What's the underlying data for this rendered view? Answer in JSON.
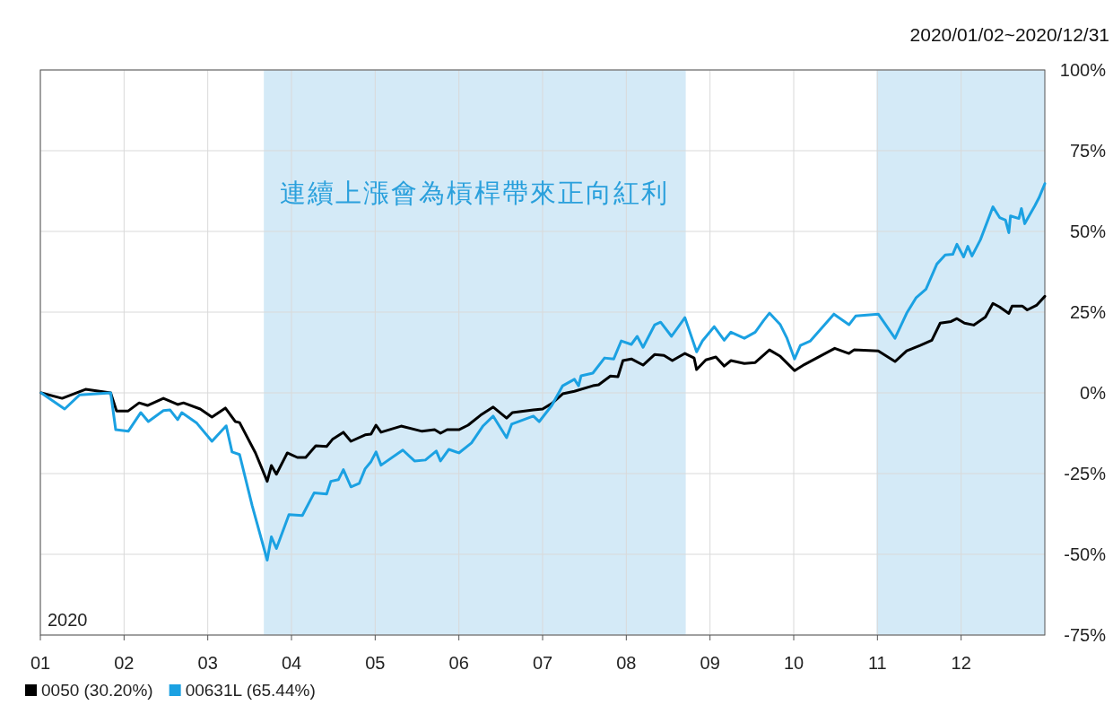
{
  "chart_data": {
    "type": "line",
    "annotations": [
      "2020/01/02~2020/12/31",
      "2020",
      "連續上漲會為槓桿帶來正向紅利"
    ],
    "xlim": [
      1,
      13
    ],
    "xticks": [
      {
        "value": 1,
        "label": "01"
      },
      {
        "value": 2,
        "label": "02"
      },
      {
        "value": 3,
        "label": "03"
      },
      {
        "value": 4,
        "label": "04"
      },
      {
        "value": 5,
        "label": "05"
      },
      {
        "value": 6,
        "label": "06"
      },
      {
        "value": 7,
        "label": "07"
      },
      {
        "value": 8,
        "label": "08"
      },
      {
        "value": 9,
        "label": "09"
      },
      {
        "value": 10,
        "label": "10"
      },
      {
        "value": 11,
        "label": "11"
      },
      {
        "value": 12,
        "label": "12"
      }
    ],
    "ylim": [
      -75,
      100
    ],
    "yticks": [
      {
        "value": 100,
        "label": "100%"
      },
      {
        "value": 75,
        "label": "75%"
      },
      {
        "value": 50,
        "label": "50%"
      },
      {
        "value": 25,
        "label": "25%"
      },
      {
        "value": 0,
        "label": "0%"
      },
      {
        "value": -25,
        "label": "-25%"
      },
      {
        "value": -50,
        "label": "-50%"
      },
      {
        "value": -75,
        "label": "-75%"
      }
    ],
    "grid": true,
    "legend": "bottom left",
    "marker": "none",
    "line_style": "solid",
    "bands": [
      {
        "axis": "x",
        "from": 3.67,
        "to": 8.71,
        "color": "#d4eaf7"
      },
      {
        "axis": "x",
        "from": 10.99,
        "to": 13.0,
        "color": "#d4eaf7"
      }
    ],
    "series": [
      {
        "name": "0050 (30.20%)",
        "color": "#000000",
        "x": [
          1.01,
          1.26,
          1.54,
          1.84,
          1.91,
          2.05,
          2.18,
          2.28,
          2.47,
          2.64,
          2.71,
          2.91,
          3.05,
          3.21,
          3.33,
          3.38,
          3.57,
          3.71,
          3.76,
          3.82,
          3.95,
          4.07,
          4.17,
          4.29,
          4.42,
          4.49,
          4.62,
          4.71,
          4.88,
          4.95,
          5.01,
          5.07,
          5.31,
          5.56,
          5.71,
          5.78,
          5.86,
          6.0,
          6.11,
          6.26,
          6.41,
          6.57,
          6.64,
          6.89,
          7.0,
          7.11,
          7.24,
          7.38,
          7.6,
          7.67,
          7.81,
          7.9,
          7.96,
          8.06,
          8.2,
          8.34,
          8.45,
          8.55,
          8.7,
          8.81,
          8.84,
          8.95,
          9.07,
          9.17,
          9.25,
          9.41,
          9.54,
          9.71,
          9.84,
          10.01,
          10.13,
          10.31,
          10.49,
          10.66,
          10.72,
          11.01,
          11.21,
          11.35,
          11.51,
          11.65,
          11.75,
          11.88,
          11.95,
          12.04,
          12.15,
          12.29,
          12.38,
          12.46,
          12.57,
          12.61,
          12.73,
          12.79,
          12.9,
          13.0
        ],
        "values": [
          0,
          -1.7,
          1.1,
          0,
          -5.6,
          -5.6,
          -3.1,
          -3.9,
          -1.7,
          -3.6,
          -3.1,
          -5.0,
          -7.5,
          -4.7,
          -8.9,
          -9.2,
          -18.6,
          -27.4,
          -22.5,
          -25.2,
          -18.6,
          -20.0,
          -20.0,
          -16.4,
          -16.6,
          -14.4,
          -12.2,
          -15.0,
          -13.0,
          -12.8,
          -10.0,
          -12.2,
          -10.3,
          -11.9,
          -11.4,
          -12.5,
          -11.4,
          -11.4,
          -10.0,
          -6.9,
          -4.4,
          -7.8,
          -6.1,
          -5.3,
          -5.0,
          -3.3,
          -0.3,
          0.5,
          2.2,
          2.5,
          5.2,
          5.0,
          10.0,
          10.5,
          8.6,
          11.9,
          11.6,
          10.0,
          12.2,
          10.8,
          7.2,
          10.2,
          11.1,
          8.3,
          10.0,
          9.1,
          9.4,
          13.3,
          11.3,
          6.9,
          8.8,
          11.3,
          13.8,
          12.2,
          13.3,
          13.0,
          9.7,
          13.0,
          14.7,
          16.3,
          21.6,
          22.1,
          23.0,
          21.6,
          21.0,
          23.5,
          27.7,
          26.6,
          24.6,
          26.9,
          26.9,
          25.7,
          27.1,
          29.9
        ]
      },
      {
        "name": "00631L (65.44%)",
        "color": "#1ba1e2",
        "x": [
          1.01,
          1.29,
          1.47,
          1.84,
          1.9,
          2.05,
          2.2,
          2.29,
          2.47,
          2.55,
          2.64,
          2.69,
          2.87,
          3.05,
          3.22,
          3.29,
          3.38,
          3.53,
          3.71,
          3.76,
          3.82,
          3.97,
          4.13,
          4.27,
          4.42,
          4.47,
          4.56,
          4.62,
          4.71,
          4.81,
          4.88,
          4.95,
          5.01,
          5.07,
          5.33,
          5.47,
          5.6,
          5.73,
          5.78,
          5.88,
          6.0,
          6.15,
          6.29,
          6.41,
          6.57,
          6.63,
          6.89,
          6.96,
          7.11,
          7.24,
          7.38,
          7.43,
          7.46,
          7.6,
          7.74,
          7.85,
          7.94,
          8.06,
          8.13,
          8.2,
          8.34,
          8.41,
          8.54,
          8.7,
          8.84,
          8.91,
          9.05,
          9.17,
          9.25,
          9.41,
          9.54,
          9.64,
          9.71,
          9.84,
          9.92,
          10.01,
          10.08,
          10.2,
          10.48,
          10.66,
          10.74,
          11.01,
          11.21,
          11.35,
          11.46,
          11.58,
          11.71,
          11.81,
          11.9,
          11.95,
          12.03,
          12.08,
          12.13,
          12.23,
          12.38,
          12.46,
          12.53,
          12.57,
          12.59,
          12.69,
          12.72,
          12.76,
          12.88,
          12.93,
          13.0
        ],
        "values": [
          0,
          -5.0,
          -0.6,
          0,
          -11.4,
          -11.9,
          -6.1,
          -8.9,
          -5.5,
          -5.3,
          -8.3,
          -6.1,
          -9.4,
          -15.0,
          -10.2,
          -18.3,
          -19.1,
          -34.9,
          -51.8,
          -44.6,
          -48.2,
          -37.7,
          -38.0,
          -31.0,
          -31.3,
          -27.4,
          -26.9,
          -23.8,
          -29.1,
          -28.0,
          -23.5,
          -21.3,
          -18.3,
          -22.4,
          -17.7,
          -21.1,
          -20.8,
          -18.0,
          -21.1,
          -17.5,
          -18.6,
          -15.5,
          -10.2,
          -7.2,
          -13.9,
          -9.7,
          -7.2,
          -8.9,
          -3.9,
          2.2,
          4.2,
          2.2,
          5.3,
          6.1,
          10.8,
          10.5,
          16.1,
          15.0,
          17.5,
          14.1,
          21.1,
          21.9,
          17.5,
          23.3,
          12.7,
          16.1,
          20.5,
          16.3,
          18.8,
          16.9,
          18.8,
          22.4,
          24.7,
          21.1,
          16.9,
          10.5,
          14.7,
          16.1,
          24.4,
          21.1,
          23.8,
          24.4,
          16.9,
          24.7,
          29.4,
          32.1,
          39.9,
          42.7,
          42.9,
          46.0,
          42.1,
          45.4,
          42.4,
          47.4,
          57.6,
          54.3,
          53.5,
          49.6,
          54.8,
          54.0,
          57.1,
          52.4,
          57.9,
          60.4,
          64.8
        ]
      }
    ]
  }
}
